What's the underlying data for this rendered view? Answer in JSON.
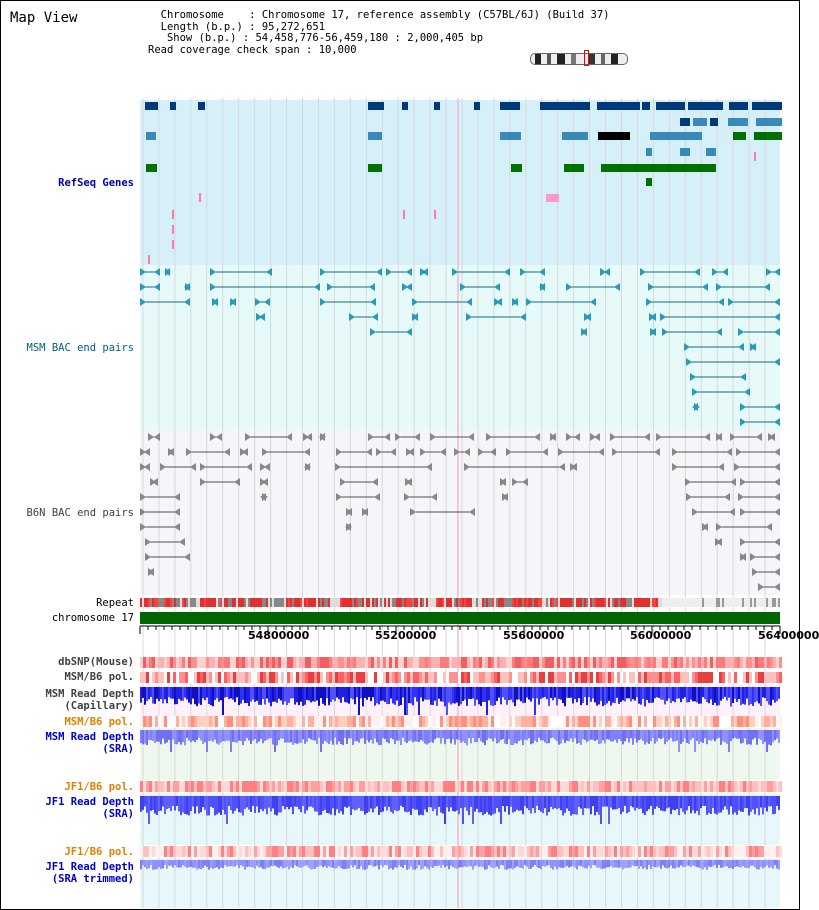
{
  "title": "Map View",
  "info": {
    "chromosome_label": "Chromosome",
    "chromosome_value": "Chromosome 17, reference assembly (C57BL/6J) (Build 37)",
    "length_label": "Length (b.p.)",
    "length_value": "95,272,651",
    "show_label": "Show (b.p.)",
    "show_value": "54,458,776-56,459,180 : 2,000,405 bp",
    "coverage_label": "Read coverage check span",
    "coverage_value": "10,000"
  },
  "tracks": {
    "refseq": "RefSeq Genes",
    "msm_bac": "MSM BAC end pairs",
    "b6n_bac": "B6N BAC end pairs",
    "repeat": "Repeat",
    "chromosome": "chromosome 17",
    "dbsnp": "dbSNP(Mouse)",
    "msm_b6_pol_1": "MSM/B6 pol.",
    "msm_read_depth_cap_1": "MSM Read Depth",
    "msm_read_depth_cap_2": "(Capillary)",
    "msm_b6_pol_2": "MSM/B6 pol.",
    "msm_read_depth_sra_1": "MSM Read Depth",
    "msm_read_depth_sra_2": "(SRA)",
    "jf1_b6_pol_1": "JF1/B6 pol.",
    "jf1_read_depth_sra_1": "JF1 Read Depth",
    "jf1_read_depth_sra_2": "(SRA)",
    "jf1_b6_pol_2": "JF1/B6 pol.",
    "jf1_read_depth_trim_1": "JF1 Read Depth",
    "jf1_read_depth_trim_2": "(SRA trimmed)"
  },
  "axis": {
    "ticks": [
      "54800000",
      "55200000",
      "55600000",
      "56000000",
      "56400000"
    ]
  },
  "colors": {
    "refseq_bg": "#d6f0fa",
    "msm_bg": "#e6fafa",
    "b6n_bg": "#f6f6fa",
    "refseq_label": "#0000aa",
    "msm_label": "#006080",
    "b6n_label": "#404040",
    "pol_label": "#e08000",
    "depth_label": "#0000cc",
    "chromosome_bar": "#006600"
  }
}
